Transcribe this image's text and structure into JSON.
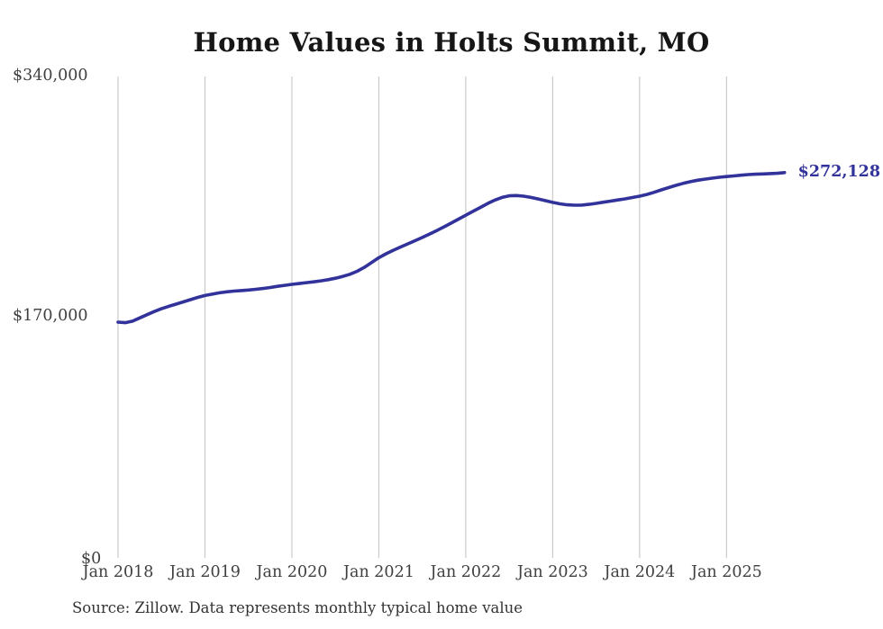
{
  "colors": {
    "background": "#FFFFFF",
    "line": "#32329B",
    "grid": "#CACACA",
    "title": "#161616",
    "axis_labels": "#404040",
    "end_label": "#32329B",
    "source": "#333333"
  },
  "chart_data": {
    "type": "line",
    "title": "Home Values in Holts Summit, MO",
    "xlabel": "",
    "ylabel": "",
    "ylim": [
      0,
      340000
    ],
    "grid": "vertical-only",
    "legend": "none",
    "x_tick_labels": [
      "Jan 2018",
      "Jan 2019",
      "Jan 2020",
      "Jan 2021",
      "Jan 2022",
      "Jan 2023",
      "Jan 2024",
      "Jan 2025"
    ],
    "y_ticks": [
      {
        "value": 340000,
        "label": "$340,000"
      },
      {
        "value": 170000,
        "label": "$170,000"
      },
      {
        "value": 0,
        "label": "$0"
      }
    ],
    "frequency": "monthly",
    "x_start": "Jan 2018",
    "x_end": "Sep 2025",
    "end_label": "$272,128",
    "end_value": 272128,
    "source_note": "Source: Zillow. Data represents monthly typical home value",
    "series": [
      {
        "name": "Typical home value",
        "color": "#32329B",
        "values": [
          166500,
          166100,
          167200,
          169500,
          171800,
          174000,
          176000,
          177700,
          179200,
          180800,
          182400,
          184000,
          185300,
          186300,
          187200,
          187900,
          188400,
          188800,
          189200,
          189700,
          190300,
          191000,
          191800,
          192500,
          193200,
          193800,
          194400,
          195000,
          195700,
          196500,
          197500,
          198800,
          200300,
          202400,
          205200,
          208600,
          212000,
          214800,
          217300,
          219600,
          221800,
          224000,
          226300,
          228700,
          231200,
          233800,
          236500,
          239300,
          242000,
          244800,
          247500,
          250200,
          252700,
          254600,
          255700,
          255900,
          255500,
          254600,
          253500,
          252300,
          251100,
          250100,
          249400,
          249100,
          249200,
          249700,
          250400,
          251200,
          252000,
          252800,
          253600,
          254500,
          255500,
          256700,
          258200,
          259900,
          261500,
          263100,
          264500,
          265700,
          266700,
          267500,
          268200,
          268800,
          269300,
          269800,
          270300,
          270700,
          271000,
          271200,
          271400,
          271600,
          272128
        ]
      }
    ]
  }
}
